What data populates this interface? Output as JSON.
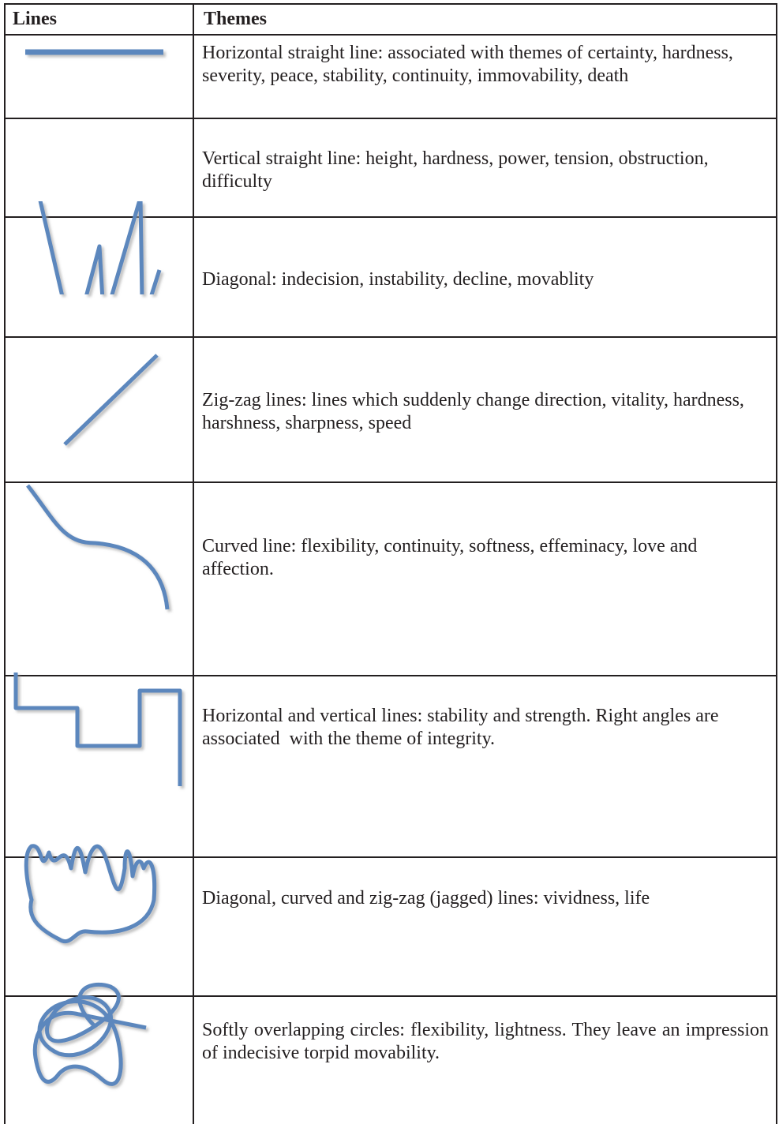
{
  "table": {
    "header": [
      "Lines",
      "Themes"
    ],
    "rows": [
      "Horizontal straight line: associated with themes of certainty, hardness, severity, peace, stability, continuity, immovability, death",
      "Vertical straight line: height, hardness, power, tension, obstruction, difficulty",
      "Diagonal: indecision, instability, decline, movablity",
      "Zig-zag lines: lines which suddenly change direction, vitality, hardness, harshness, sharpness, speed",
      "Curved line: flexibility, continuity, softness, effeminacy, love and affection.",
      "Horizontal and vertical lines: stability and strength. Right angles are associated  with the theme of integrity.",
      "Diagonal, curved and zig-zag (jagged) lines: vividness, life",
      "Softly overlapping circles: flexibility, lightness. They leave an impression of indecisive torpid movability."
    ]
  }
}
